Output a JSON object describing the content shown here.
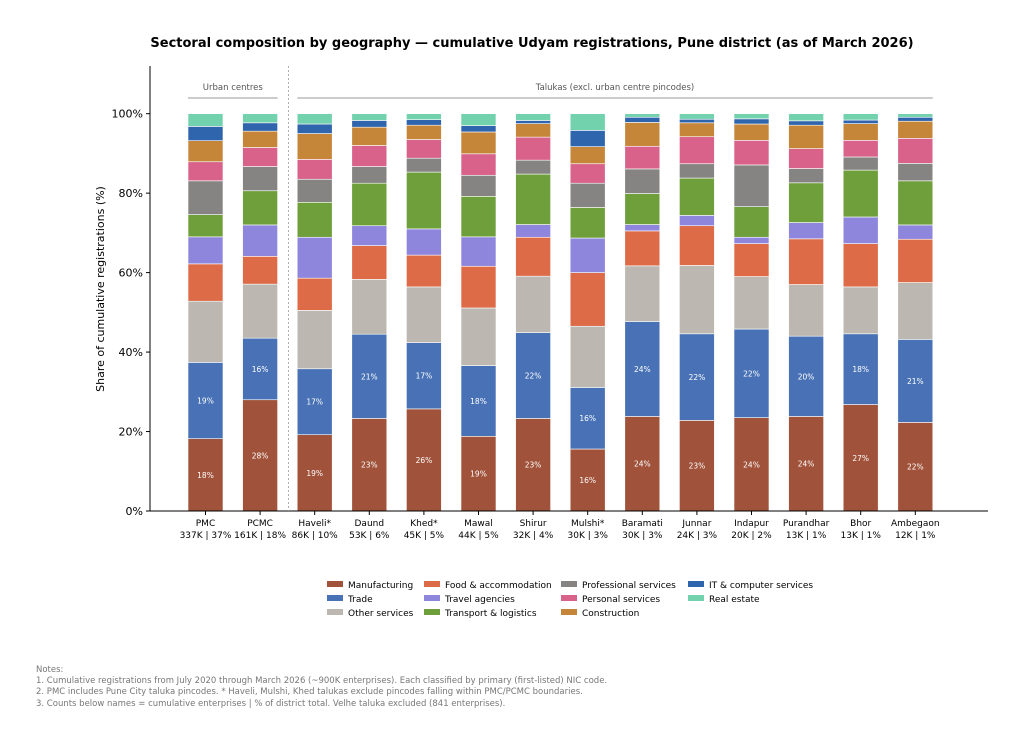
{
  "chart_data": {
    "type": "bar",
    "stacked": true,
    "normalized_percent": true,
    "title": "Sectoral composition by geography — cumulative Udyam registrations, Pune district (as of March 2026)",
    "ylabel": "Share of cumulative registrations (%)",
    "ylim": [
      0,
      112
    ],
    "yticks": [
      "0%",
      "20%",
      "40%",
      "60%",
      "80%",
      "100%"
    ],
    "ytick_values": [
      0,
      20,
      40,
      60,
      80,
      100
    ],
    "grid": false,
    "legend_placement": "bottom-center",
    "groups": [
      {
        "label": "Urban centres",
        "categories": [
          0,
          1
        ]
      },
      {
        "label": "Talukas (excl. urban centre pincodes)",
        "categories": [
          2,
          3,
          4,
          5,
          6,
          7,
          8,
          9,
          10,
          11,
          12,
          13
        ]
      }
    ],
    "categories": [
      "PMC",
      "PCMC",
      "Haveli*",
      "Daund",
      "Khed*",
      "Mawal",
      "Shirur",
      "Mulshi*",
      "Baramati",
      "Junnar",
      "Indapur",
      "Purandhar",
      "Bhor",
      "Ambegaon"
    ],
    "category_sublabels": [
      "337K | 37%",
      "161K | 18%",
      "86K | 10%",
      "53K | 6%",
      "45K | 5%",
      "44K | 5%",
      "32K | 4%",
      "30K | 3%",
      "30K | 3%",
      "24K | 3%",
      "20K | 2%",
      "13K | 1%",
      "13K | 1%",
      "12K | 1%"
    ],
    "series": [
      {
        "name": "Manufacturing",
        "color": "#a0523a",
        "values": [
          18.2,
          28.0,
          19.2,
          23.3,
          25.7,
          18.8,
          23.3,
          15.6,
          23.8,
          22.8,
          23.5,
          23.8,
          26.8,
          22.3
        ],
        "labels": [
          "18%",
          "28%",
          "19%",
          "23%",
          "26%",
          "19%",
          "23%",
          "16%",
          "24%",
          "23%",
          "24%",
          "24%",
          "27%",
          "22%"
        ]
      },
      {
        "name": "Trade",
        "color": "#4872b5",
        "values": [
          19.2,
          15.5,
          16.6,
          21.2,
          16.7,
          17.8,
          21.6,
          15.5,
          23.9,
          21.8,
          22.3,
          20.2,
          17.8,
          20.9
        ],
        "labels": [
          "19%",
          "16%",
          "17%",
          "21%",
          "17%",
          "18%",
          "22%",
          "16%",
          "24%",
          "22%",
          "22%",
          "20%",
          "18%",
          "21%"
        ]
      },
      {
        "name": "Other services",
        "color": "#bcb8b1",
        "values": [
          15.4,
          13.6,
          14.7,
          13.8,
          14.0,
          14.5,
          14.2,
          15.4,
          14.0,
          17.2,
          13.2,
          13.0,
          11.8,
          14.3
        ]
      },
      {
        "name": "Food & accommodation",
        "color": "#dd6b48",
        "values": [
          9.4,
          7.0,
          8.1,
          8.5,
          8.0,
          10.5,
          9.8,
          13.5,
          8.8,
          10.0,
          8.3,
          11.5,
          10.9,
          10.9
        ]
      },
      {
        "name": "Travel agencies",
        "color": "#8e86dd",
        "values": [
          6.8,
          7.9,
          10.3,
          5.0,
          6.6,
          7.4,
          3.2,
          8.7,
          1.6,
          2.6,
          1.6,
          4.1,
          6.7,
          3.6
        ]
      },
      {
        "name": "Transport & logistics",
        "color": "#6e9f3b",
        "values": [
          5.6,
          8.6,
          8.8,
          10.7,
          14.3,
          10.2,
          12.7,
          7.7,
          7.8,
          9.4,
          7.7,
          10.0,
          11.8,
          11.1
        ]
      },
      {
        "name": "Professional services",
        "color": "#858482",
        "values": [
          8.5,
          6.1,
          5.8,
          4.2,
          3.5,
          5.3,
          3.5,
          6.1,
          6.2,
          3.6,
          10.5,
          3.6,
          3.3,
          4.4
        ]
      },
      {
        "name": "Personal services",
        "color": "#d9628a",
        "values": [
          4.8,
          4.8,
          5.0,
          5.3,
          4.7,
          5.4,
          5.8,
          4.9,
          5.7,
          6.8,
          6.2,
          5.0,
          4.2,
          6.3
        ]
      },
      {
        "name": "Construction",
        "color": "#c6863a",
        "values": [
          5.3,
          4.1,
          6.5,
          4.6,
          3.6,
          5.5,
          3.4,
          4.3,
          6.0,
          3.5,
          4.1,
          5.9,
          4.2,
          4.3
        ]
      },
      {
        "name": "IT & computer services",
        "color": "#2f65ad",
        "values": [
          3.6,
          2.1,
          2.4,
          1.7,
          1.4,
          1.6,
          0.8,
          4.1,
          1.3,
          0.9,
          1.3,
          1.1,
          0.9,
          1.0
        ]
      },
      {
        "name": "Real estate",
        "color": "#73d2ae",
        "values": [
          3.2,
          2.3,
          2.6,
          1.7,
          1.5,
          3.0,
          1.7,
          4.2,
          0.9,
          1.4,
          1.3,
          1.8,
          1.6,
          0.9
        ]
      }
    ]
  },
  "notes": {
    "heading": "Notes:",
    "line1": "1. Cumulative registrations from July 2020 through March 2026 (~900K enterprises). Each classified by primary (first-listed) NIC code.",
    "line2": "2. PMC includes Pune City taluka pincodes. * Haveli, Mulshi, Khed talukas exclude pincodes falling within PMC/PCMC boundaries.",
    "line3": "3. Counts below names = cumulative enterprises | % of district total. Velhe taluka excluded (841 enterprises)."
  }
}
